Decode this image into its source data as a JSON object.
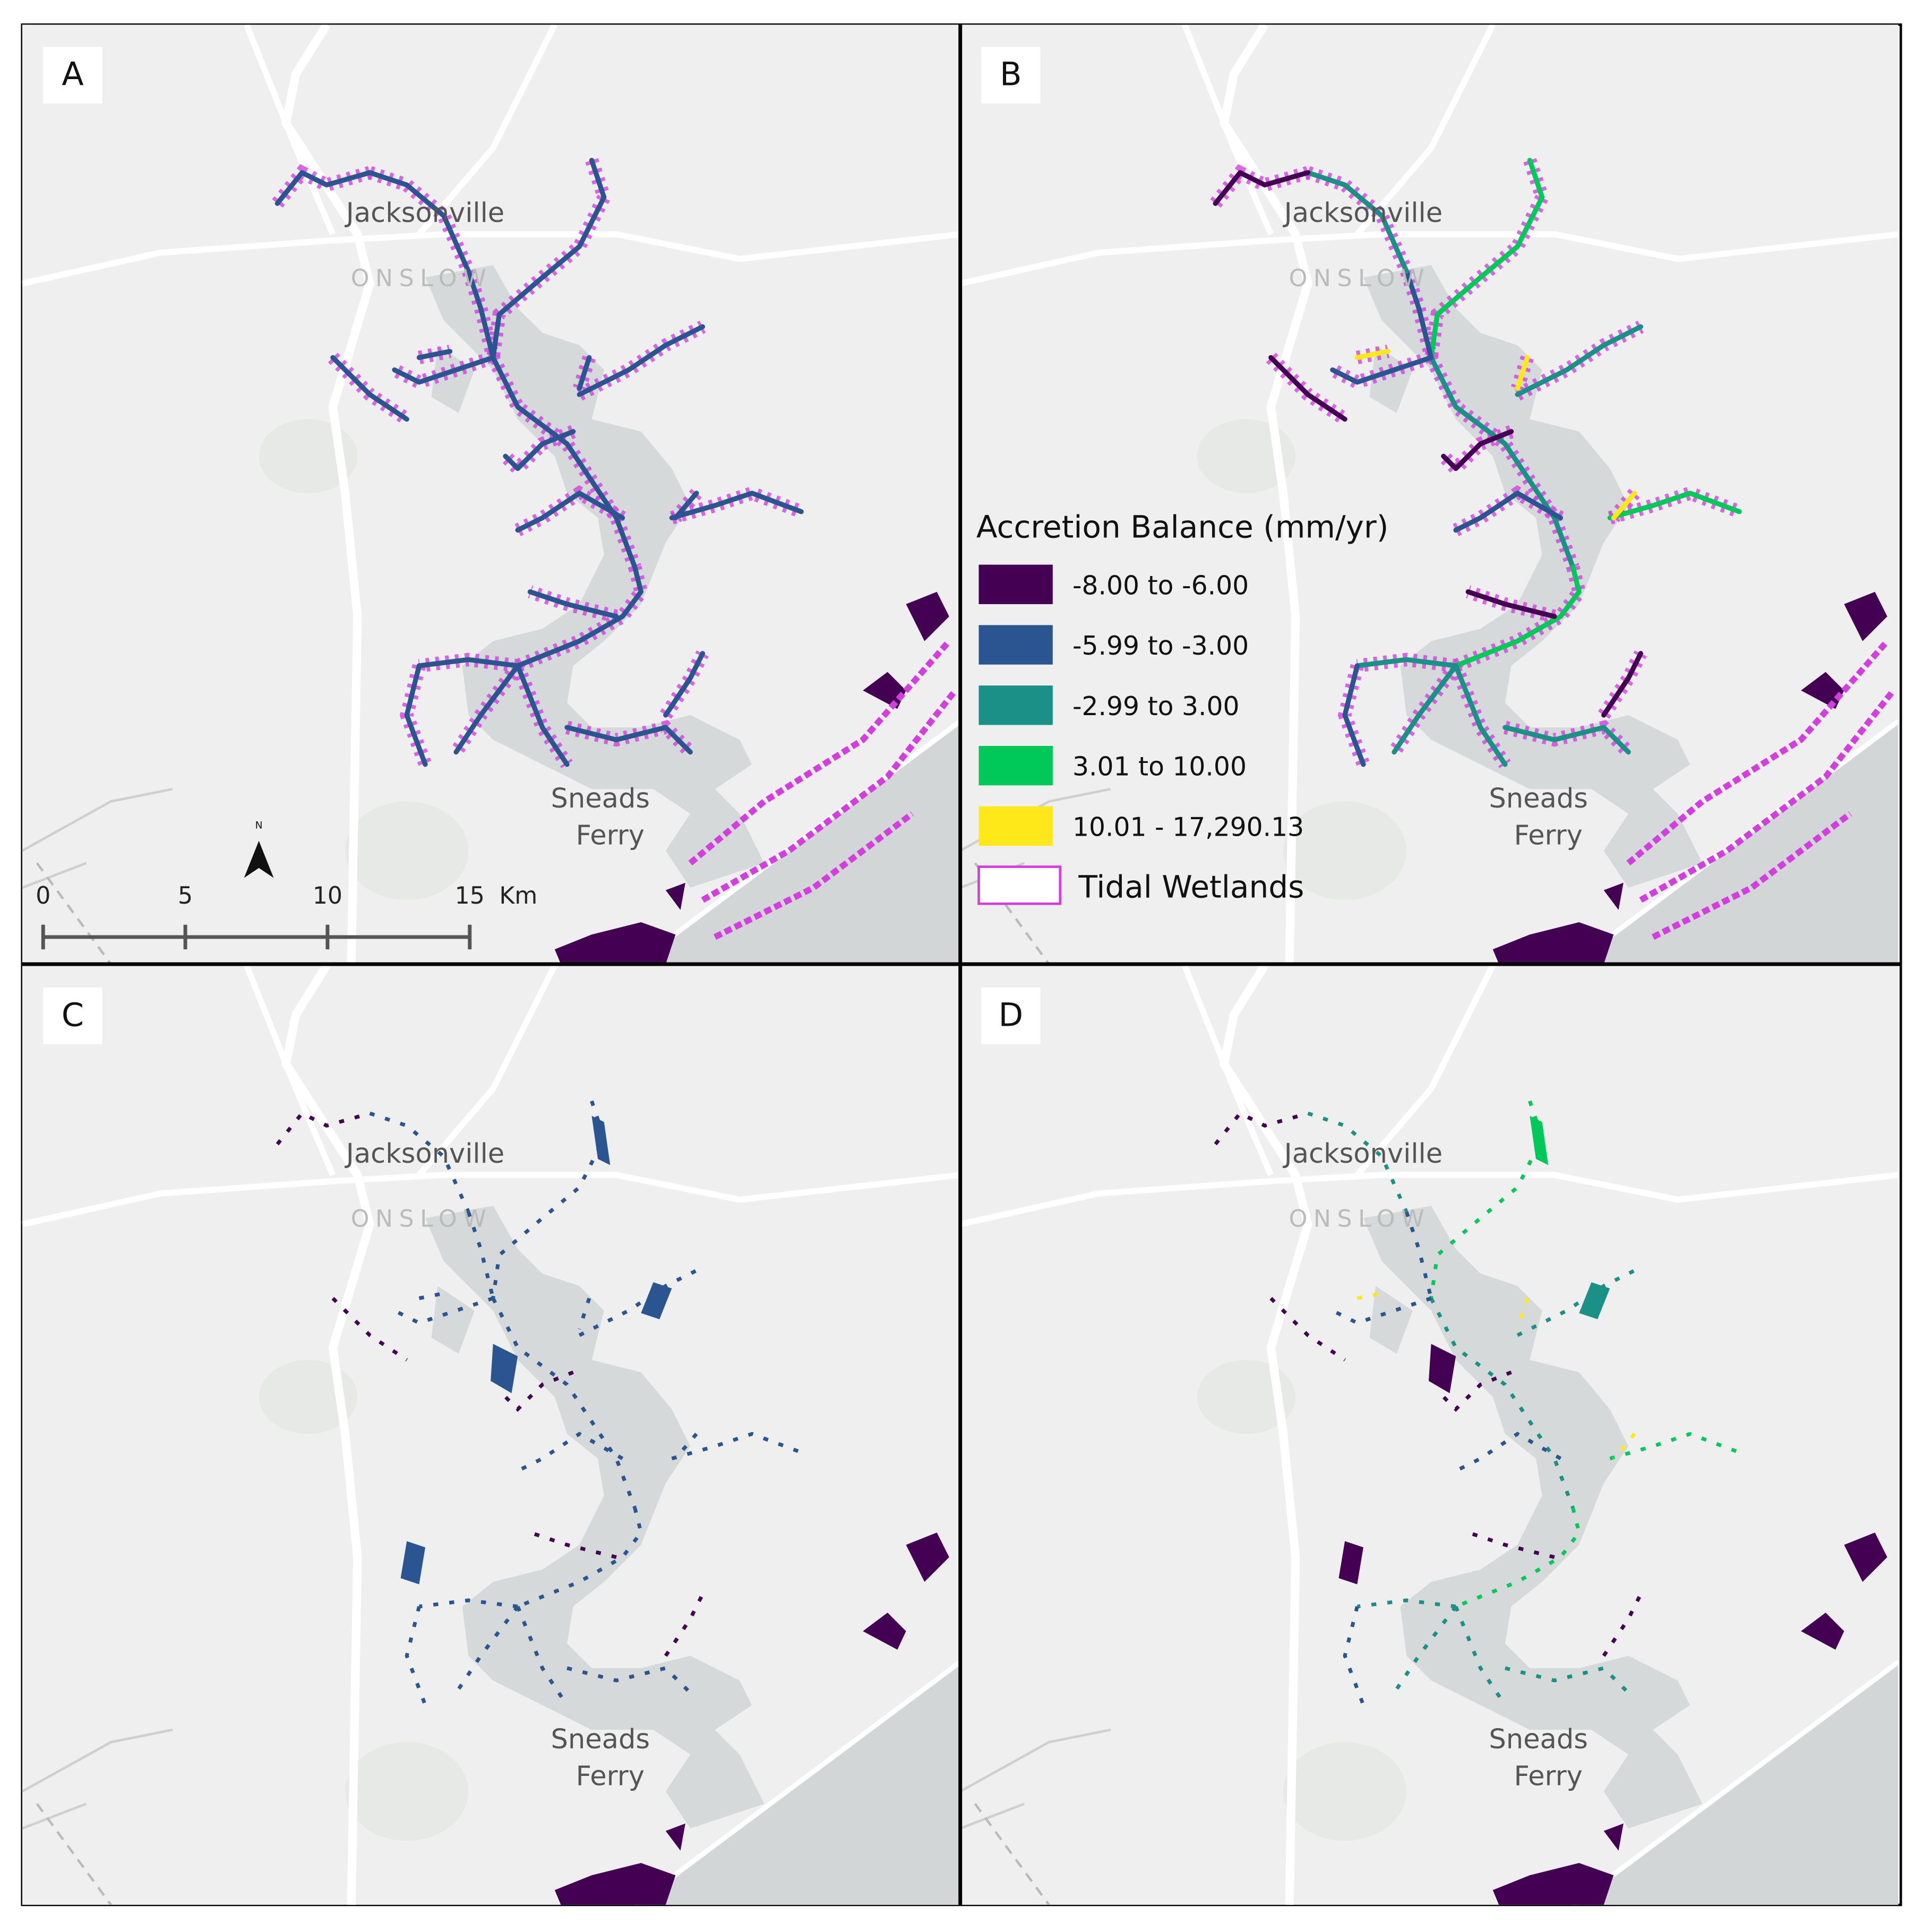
{
  "panels": [
    {
      "label": "A"
    },
    {
      "label": "B"
    },
    {
      "label": "C"
    },
    {
      "label": "D"
    }
  ],
  "places": {
    "city": "Jacksonville",
    "county": "ONSLOW",
    "town_line1": "Sneads",
    "town_line2": "Ferry"
  },
  "legend": {
    "title": "Accretion Balance (mm/yr)",
    "items": [
      {
        "label": "-8.00 to -6.00",
        "color": "#440154"
      },
      {
        "label": "-5.99 to -3.00",
        "color": "#2b5591"
      },
      {
        "label": "-2.99 to 3.00",
        "color": "#1a9087"
      },
      {
        "label": "3.01 to 10.00",
        "color": "#00c95a"
      },
      {
        "label": "10.01 - 17,290.13",
        "color": "#ffe81a"
      }
    ],
    "wetlands": {
      "label": "Tidal Wetlands",
      "color": "#d43ee0"
    }
  },
  "scale_bar": {
    "ticks": [
      0,
      5,
      10,
      15
    ],
    "unit": "Km"
  },
  "north": "N"
}
